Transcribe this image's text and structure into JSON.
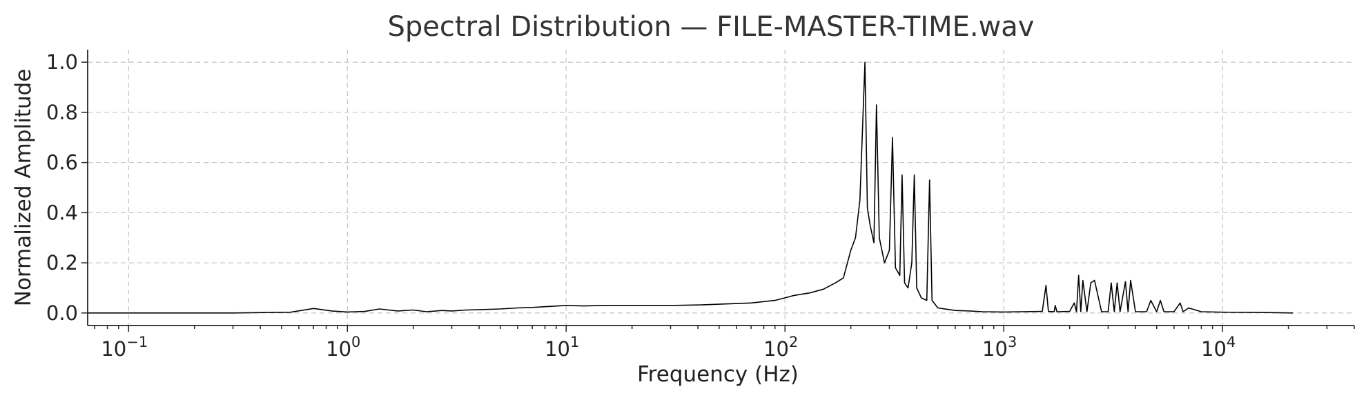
{
  "chart_data": {
    "type": "line",
    "title": "Spectral Distribution — FILE-MASTER-TIME.wav",
    "xlabel": "Frequency (Hz)",
    "ylabel": "Normalized Amplitude",
    "x_scale": "log",
    "xlim": [
      0.065,
      40000
    ],
    "ylim": [
      -0.05,
      1.05
    ],
    "grid": true,
    "x_ticks": [
      {
        "value": 0.1,
        "base": "10",
        "exp": "−1"
      },
      {
        "value": 1,
        "base": "10",
        "exp": "0"
      },
      {
        "value": 10,
        "base": "10",
        "exp": "1"
      },
      {
        "value": 100,
        "base": "10",
        "exp": "2"
      },
      {
        "value": 1000,
        "base": "10",
        "exp": "3"
      },
      {
        "value": 10000,
        "base": "10",
        "exp": "4"
      }
    ],
    "y_ticks": [
      {
        "value": 0.0,
        "label": "0.0"
      },
      {
        "value": 0.2,
        "label": "0.2"
      },
      {
        "value": 0.4,
        "label": "0.4"
      },
      {
        "value": 0.6,
        "label": "0.6"
      },
      {
        "value": 0.8,
        "label": "0.8"
      },
      {
        "value": 1.0,
        "label": "1.0"
      }
    ],
    "series": [
      {
        "color": "#000000",
        "x": [
          0.065,
          0.3,
          0.55,
          0.7,
          0.85,
          1.0,
          1.2,
          1.4,
          1.7,
          2.0,
          2.3,
          2.7,
          3.0,
          3.5,
          4.0,
          5.0,
          6.0,
          7.0,
          8.0,
          10,
          12,
          15,
          20,
          30,
          40,
          50,
          70,
          90,
          110,
          130,
          150,
          170,
          185,
          200,
          210,
          220,
          232,
          238,
          245,
          255,
          262,
          270,
          285,
          300,
          310,
          320,
          335,
          343,
          352,
          365,
          380,
          390,
          400,
          420,
          445,
          458,
          470,
          500,
          550,
          600,
          700,
          800,
          1000,
          1200,
          1500,
          1560,
          1600,
          1700,
          1720,
          1750,
          2000,
          2100,
          2150,
          2200,
          2250,
          2300,
          2400,
          2500,
          2600,
          2800,
          3000,
          3100,
          3200,
          3300,
          3400,
          3600,
          3700,
          3800,
          4000,
          4500,
          4700,
          5000,
          5200,
          5400,
          6000,
          6400,
          6600,
          7000,
          8000,
          10000,
          15000,
          21000
        ],
        "y": [
          0.0,
          0.0,
          0.003,
          0.018,
          0.008,
          0.004,
          0.006,
          0.016,
          0.008,
          0.012,
          0.005,
          0.01,
          0.008,
          0.012,
          0.013,
          0.016,
          0.02,
          0.022,
          0.025,
          0.03,
          0.028,
          0.03,
          0.03,
          0.03,
          0.032,
          0.035,
          0.04,
          0.05,
          0.07,
          0.08,
          0.095,
          0.12,
          0.14,
          0.25,
          0.3,
          0.45,
          1.0,
          0.42,
          0.35,
          0.28,
          0.83,
          0.3,
          0.2,
          0.25,
          0.7,
          0.18,
          0.15,
          0.55,
          0.12,
          0.1,
          0.2,
          0.55,
          0.1,
          0.06,
          0.05,
          0.53,
          0.05,
          0.02,
          0.015,
          0.01,
          0.008,
          0.005,
          0.004,
          0.005,
          0.006,
          0.11,
          0.006,
          0.005,
          0.03,
          0.005,
          0.006,
          0.04,
          0.005,
          0.15,
          0.005,
          0.13,
          0.005,
          0.12,
          0.13,
          0.005,
          0.005,
          0.12,
          0.005,
          0.12,
          0.005,
          0.125,
          0.005,
          0.13,
          0.005,
          0.005,
          0.05,
          0.005,
          0.05,
          0.005,
          0.005,
          0.04,
          0.005,
          0.02,
          0.005,
          0.003,
          0.002,
          0.0
        ]
      }
    ]
  }
}
